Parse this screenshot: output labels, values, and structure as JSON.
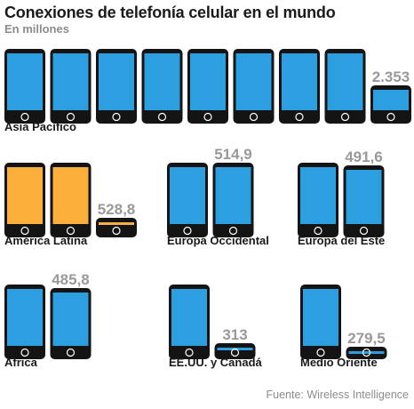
{
  "header": {
    "title": "Conexiones de telefonía celular en el mundo",
    "subtitle": "En millones"
  },
  "footer": {
    "source": "Fuente: Wireless Intelligence"
  },
  "colors": {
    "phone_body": "#141414",
    "screen_default": "#2b9fe0",
    "screen_highlight": "#fbb03b",
    "value_label": "#999999"
  },
  "chart_data": {
    "type": "pictogram",
    "unit_note": "Each full phone icon represents roughly 250 million connections; the last icon is filled to show the remainder.",
    "regions": [
      {
        "name": "Asia Pacífico",
        "value": 2353,
        "value_label": "2.353",
        "full_icons": 8,
        "partial_fill": 0.41,
        "screen_color": "#2b9fe0"
      },
      {
        "name": "América Latina",
        "value": 528.8,
        "value_label": "528,8",
        "full_icons": 2,
        "partial_fill": 0.12,
        "screen_color": "#fbb03b"
      },
      {
        "name": "Europa Occidental",
        "value": 514.9,
        "value_label": "514,9",
        "full_icons": 1,
        "partial_fill": 1.0,
        "screen_color": "#2b9fe0"
      },
      {
        "name": "Europa del Este",
        "value": 491.6,
        "value_label": "491,6",
        "full_icons": 1,
        "partial_fill": 0.96,
        "screen_color": "#2b9fe0"
      },
      {
        "name": "África",
        "value": 485.8,
        "value_label": "485,8",
        "full_icons": 1,
        "partial_fill": 0.94,
        "screen_color": "#2b9fe0"
      },
      {
        "name": "EE.UU. y Canadá",
        "value": 313,
        "value_label": "313",
        "full_icons": 1,
        "partial_fill": 0.05,
        "screen_color": "#2b9fe0"
      },
      {
        "name": "Medio Oriente",
        "value": 279.5,
        "value_label": "279,5",
        "full_icons": 1,
        "partial_fill": 0,
        "screen_color": "#2b9fe0"
      }
    ]
  }
}
